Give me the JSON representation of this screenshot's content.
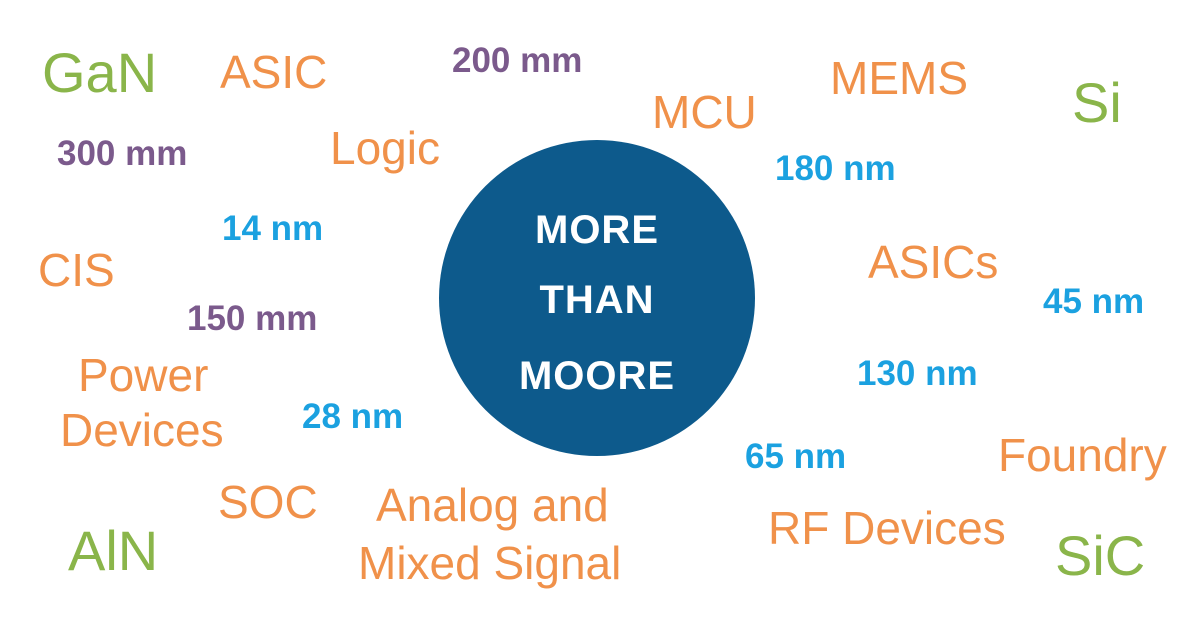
{
  "center_title": [
    "MORE",
    "THAN",
    "MOORE"
  ],
  "words": [
    [
      "GaN"
    ],
    [
      "ASIC"
    ],
    [
      "200 mm"
    ],
    [
      "MCU"
    ],
    [
      "MEMS"
    ],
    [
      "Si"
    ],
    [
      "300 mm"
    ],
    [
      "Logic"
    ],
    [
      "180 nm"
    ],
    [
      "14 nm"
    ],
    [
      "CIS"
    ],
    [
      "ASICs"
    ],
    [
      "45 nm"
    ],
    [
      "150 mm"
    ],
    [
      "Power",
      "Devices"
    ],
    [
      "130 nm"
    ],
    [
      "28 nm"
    ],
    [
      "65 nm"
    ],
    [
      "Foundry"
    ],
    [
      "SOC"
    ],
    [
      "Analog and",
      "Mixed Signal"
    ],
    [
      "RF Devices"
    ],
    [
      "AlN"
    ],
    [
      "SiC"
    ]
  ]
}
